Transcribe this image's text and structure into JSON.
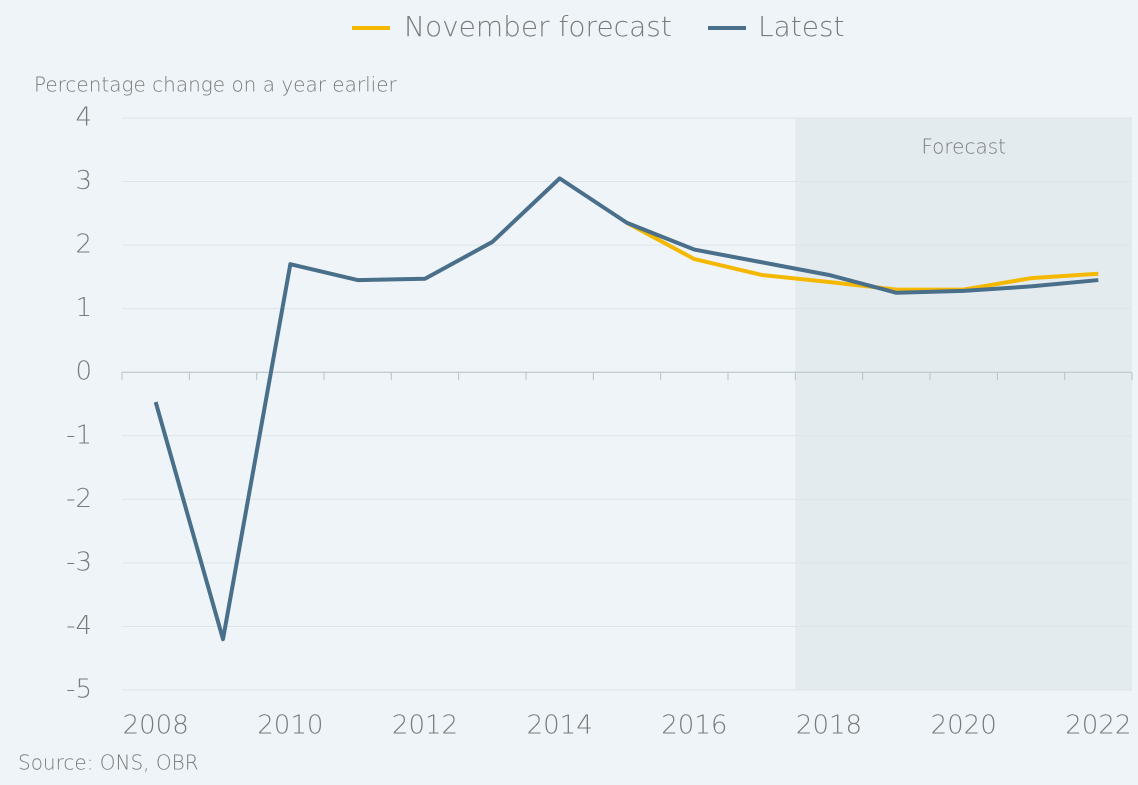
{
  "chart_data": {
    "type": "line",
    "y_axis_label": "Percentage change on a year earlier",
    "source": "Source: ONS, OBR",
    "x": [
      2008,
      2009,
      2010,
      2011,
      2012,
      2013,
      2014,
      2015,
      2016,
      2017,
      2018,
      2019,
      2020,
      2021,
      2022
    ],
    "series": [
      {
        "name": "November forecast",
        "color": "#f5b800",
        "values": [
          null,
          null,
          null,
          null,
          null,
          null,
          null,
          2.35,
          1.78,
          1.53,
          1.42,
          1.3,
          1.3,
          1.48,
          1.55
        ]
      },
      {
        "name": "Latest",
        "color": "#4a6f8a",
        "values": [
          -0.47,
          -4.2,
          1.7,
          1.45,
          1.47,
          2.05,
          3.05,
          2.35,
          1.93,
          1.73,
          1.53,
          1.25,
          1.28,
          1.35,
          1.45
        ]
      }
    ],
    "xlim": [
      2007.5,
      2022.5
    ],
    "xticks": [
      2008,
      2010,
      2012,
      2014,
      2016,
      2018,
      2020,
      2022
    ],
    "ylim": [
      -5,
      4
    ],
    "yticks": [
      -5,
      -4,
      -3,
      -2,
      -1,
      0,
      1,
      2,
      3,
      4
    ],
    "grid": true,
    "legend": "top",
    "shaded_region": {
      "label": "Forecast",
      "from": 2017.5,
      "color": "#e4ebef"
    }
  }
}
